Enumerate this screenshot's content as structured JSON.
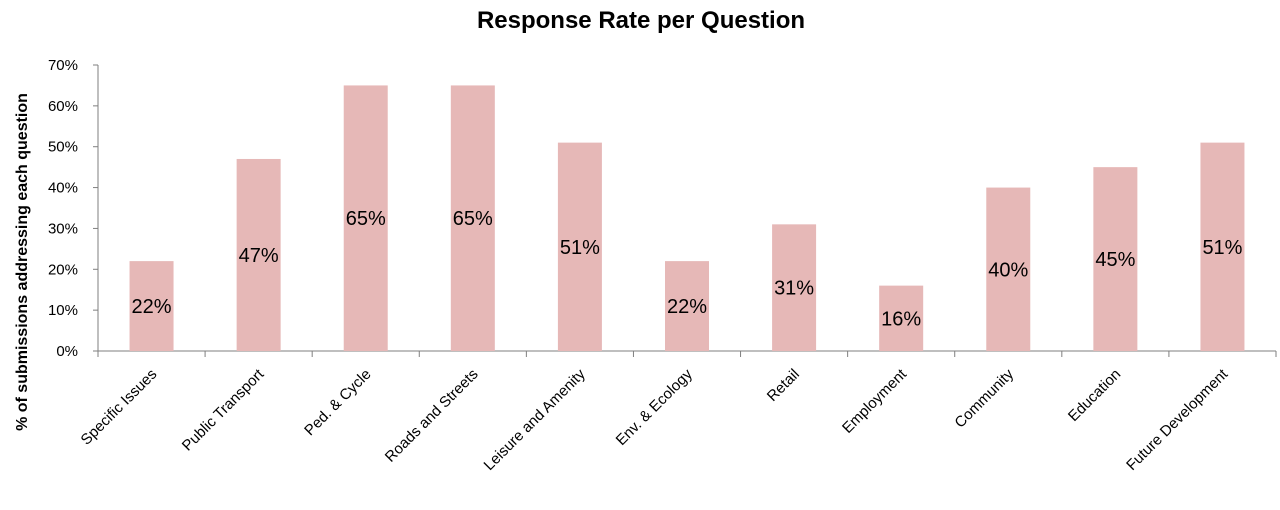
{
  "chart_data": {
    "type": "bar",
    "title": "Response Rate per Question",
    "xlabel": "",
    "ylabel": "% of submissions addressing each question",
    "categories": [
      "Specific Issues",
      "Public Transport",
      "Ped. & Cycle",
      "Roads and Streets",
      "Leisure and Amenity",
      "Env. & Ecology",
      "Retail",
      "Employment",
      "Community",
      "Education",
      "Future Development"
    ],
    "values": [
      22,
      47,
      65,
      65,
      51,
      22,
      31,
      16,
      40,
      45,
      51
    ],
    "data_labels": [
      "22%",
      "47%",
      "65%",
      "65%",
      "51%",
      "22%",
      "31%",
      "16%",
      "40%",
      "45%",
      "51%"
    ],
    "yticks": [
      "0%",
      "10%",
      "20%",
      "30%",
      "40%",
      "50%",
      "60%",
      "70%"
    ],
    "ylim": [
      0,
      70
    ],
    "grid": false,
    "legend": "none",
    "bar_color": "#e6b8b7"
  }
}
